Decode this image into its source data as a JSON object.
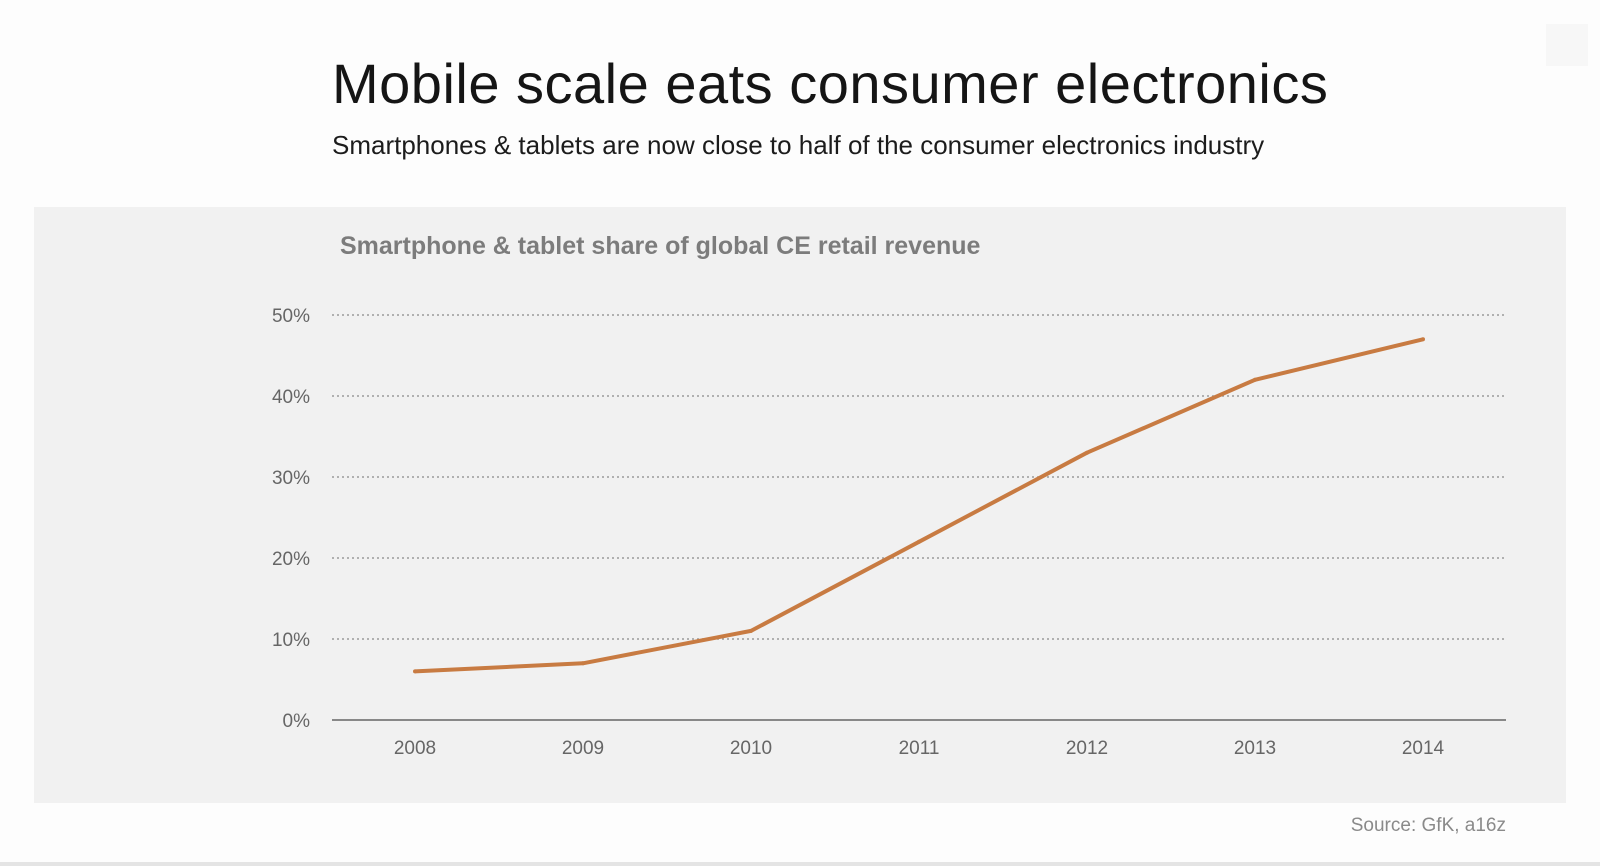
{
  "slide": {
    "title": "Mobile scale eats consumer electronics",
    "subtitle": "Smartphones & tablets are now close to half of the consumer electronics industry",
    "source": "Source: GfK, a16z"
  },
  "colors": {
    "line": "#c87b42",
    "panel": "#f1f1f1",
    "grid": "#9a9a9a",
    "axis": "#666666"
  },
  "chart_data": {
    "type": "line",
    "title": "Smartphone & tablet share of global CE retail revenue",
    "xlabel": "",
    "ylabel": "",
    "categories": [
      "2008",
      "2009",
      "2010",
      "2011",
      "2012",
      "2013",
      "2014"
    ],
    "series": [
      {
        "values": [
          6,
          7,
          11,
          22,
          33,
          42,
          47
        ]
      }
    ],
    "ylim": [
      0,
      50
    ],
    "yticks": [
      0,
      10,
      20,
      30,
      40,
      50
    ],
    "ytick_labels": [
      "0%",
      "10%",
      "20%",
      "30%",
      "40%",
      "50%"
    ],
    "grid": "horizontal dotted",
    "legend": "none"
  }
}
